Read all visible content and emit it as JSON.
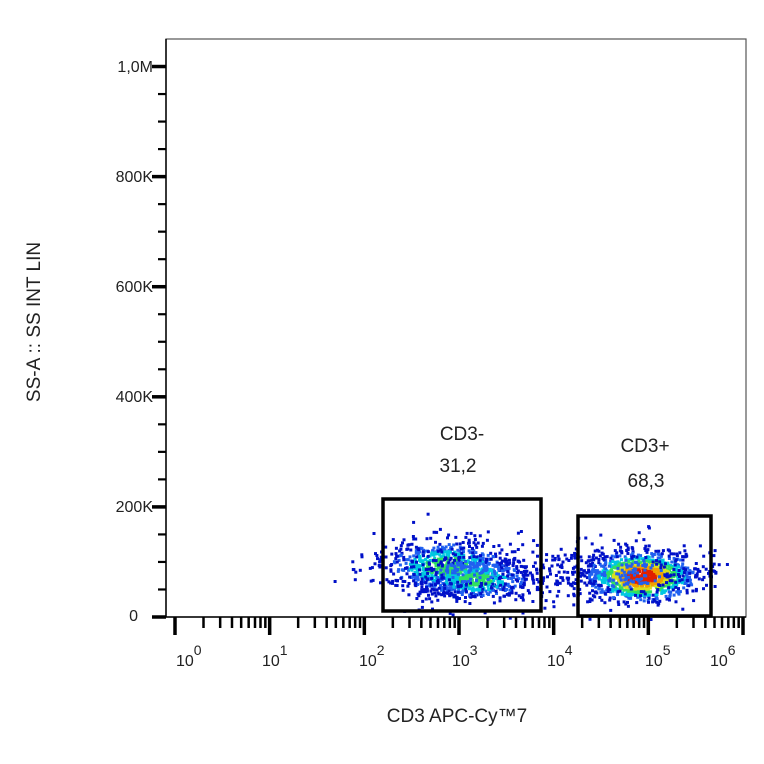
{
  "chart_data": {
    "type": "scatter",
    "subtype": "flow-cytometry-density-dot-plot",
    "title": "",
    "xlabel": "CD3 APC-Cy™7",
    "ylabel": "SS-A :: SS INT LIN",
    "x_scale": "log",
    "xlim": [
      1,
      1000000
    ],
    "x_ticks": [
      {
        "value": 1,
        "base": "10",
        "exp": "0"
      },
      {
        "value": 10,
        "base": "10",
        "exp": "1"
      },
      {
        "value": 100,
        "base": "10",
        "exp": "2"
      },
      {
        "value": 1000,
        "base": "10",
        "exp": "3"
      },
      {
        "value": 10000,
        "base": "10",
        "exp": "4"
      },
      {
        "value": 100000,
        "base": "10",
        "exp": "5"
      },
      {
        "value": 1000000,
        "base": "10",
        "exp": "6"
      }
    ],
    "y_scale": "linear",
    "ylim": [
      0,
      1050000
    ],
    "y_ticks": [
      {
        "value": 0,
        "label": "0"
      },
      {
        "value": 200000,
        "label": "200K"
      },
      {
        "value": 400000,
        "label": "400K"
      },
      {
        "value": 600000,
        "label": "600K"
      },
      {
        "value": 800000,
        "label": "800K"
      },
      {
        "value": 1000000,
        "label": "1,0M"
      }
    ],
    "grid": false,
    "legend": null,
    "populations": [
      {
        "name": "CD3-",
        "center_x": 1000,
        "center_y": 90000,
        "spread": "broad, two sub-clusters",
        "peak_color": "#33e0a0"
      },
      {
        "name": "CD3+",
        "center_x": 100000,
        "center_y": 65000,
        "spread": "compact, high density",
        "peak_color": "#e02000"
      }
    ],
    "gates": [
      {
        "name": "CD3-",
        "percent": "31,2",
        "x_range": [
          150,
          6000
        ],
        "y_range": [
          5000,
          210000
        ]
      },
      {
        "name": "CD3+",
        "percent": "68,3",
        "x_range": [
          15000,
          400000
        ],
        "y_range": [
          0,
          180000
        ]
      }
    ]
  },
  "gates": [
    {
      "name": "CD3-",
      "percent": "31,2"
    },
    {
      "name": "CD3+",
      "percent": "68,3"
    }
  ],
  "axes": {
    "x_title": "CD3 APC-Cy™7",
    "y_title": "SS-A :: SS INT LIN",
    "y_labels": [
      "0",
      "200K",
      "400K",
      "600K",
      "800K",
      "1,0M"
    ],
    "x_labels": [
      {
        "base": "10",
        "exp": "0"
      },
      {
        "base": "10",
        "exp": "1"
      },
      {
        "base": "10",
        "exp": "2"
      },
      {
        "base": "10",
        "exp": "3"
      },
      {
        "base": "10",
        "exp": "4"
      },
      {
        "base": "10",
        "exp": "5"
      },
      {
        "base": "10",
        "exp": "6"
      }
    ]
  },
  "colors": {
    "frame": "#555555",
    "axis": "#000000",
    "gate": "#000000",
    "density_low": "#0010c8",
    "density_mid": "#00c8e0",
    "density_high": "#30e060",
    "density_peak": "#e02000"
  }
}
